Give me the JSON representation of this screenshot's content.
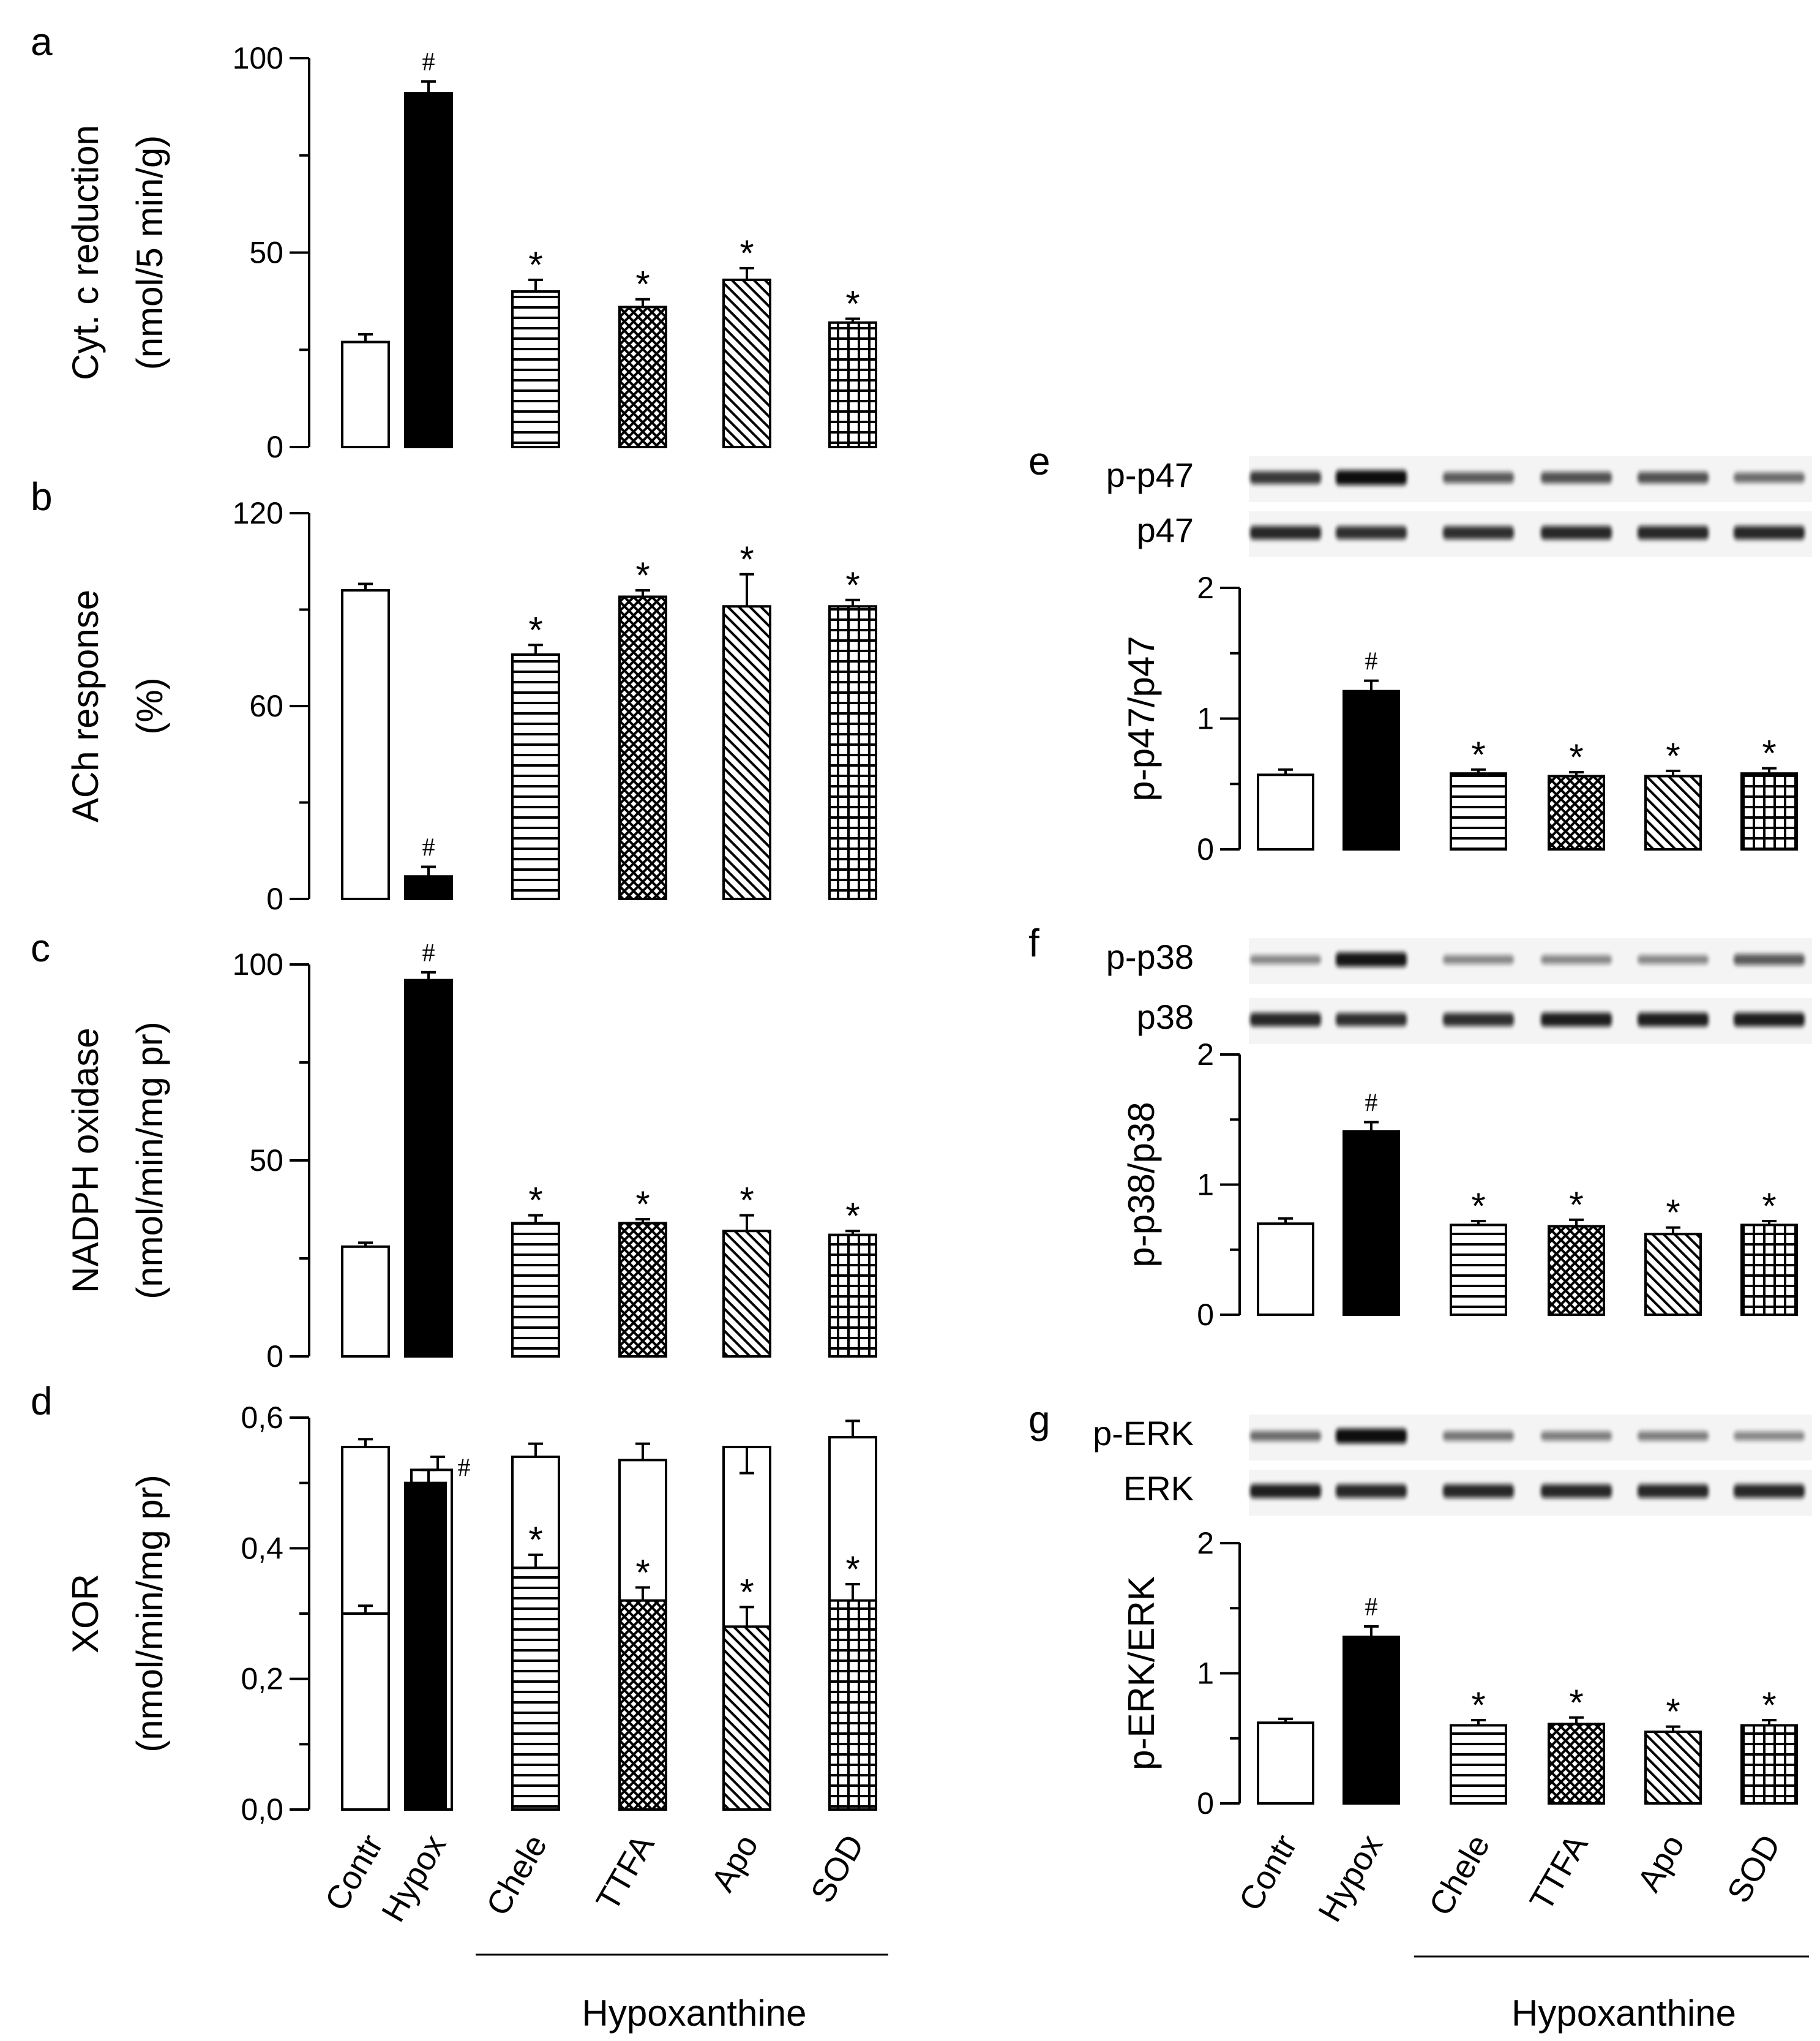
{
  "chart_data": [
    {
      "panel": "a",
      "type": "bar",
      "layout": "stacked-column-1",
      "title": "",
      "xlabel": "",
      "ylabel": [
        "Cyt. c reduction",
        "(nmol/5 min/g)"
      ],
      "ylim": [
        0,
        100
      ],
      "yticks": [
        "0",
        "50",
        "100"
      ],
      "grid": false,
      "categories": [
        "Contr",
        "Hypox",
        "Chele",
        "TTFA",
        "Apo",
        "SOD"
      ],
      "fills": [
        "white",
        "black",
        "hlines",
        "crosshatch",
        "diagonal",
        "grid"
      ],
      "values": [
        27,
        91,
        40,
        36,
        43,
        32
      ],
      "errors": [
        2,
        3,
        3,
        2,
        3,
        1
      ],
      "annotations": [
        "",
        "#",
        "*",
        "*",
        "*",
        "*"
      ]
    },
    {
      "panel": "b",
      "type": "bar",
      "layout": "stacked-column-1",
      "title": "",
      "xlabel": "",
      "ylabel": [
        "ACh response",
        "(%)"
      ],
      "ylim": [
        0,
        120
      ],
      "yticks": [
        "0",
        "60",
        "120"
      ],
      "grid": false,
      "categories": [
        "Contr",
        "Hypox",
        "Chele",
        "TTFA",
        "Apo",
        "SOD"
      ],
      "fills": [
        "white",
        "black",
        "hlines",
        "crosshatch",
        "diagonal",
        "grid"
      ],
      "values": [
        96,
        7,
        76,
        94,
        91,
        91
      ],
      "errors": [
        2,
        3,
        3,
        2,
        10,
        2
      ],
      "annotations": [
        "",
        "#",
        "*",
        "*",
        "*",
        "*"
      ]
    },
    {
      "panel": "c",
      "type": "bar",
      "layout": "stacked-column-1",
      "title": "",
      "xlabel": "",
      "ylabel": [
        "NADPH oxidase",
        "(nmol/min/mg pr)"
      ],
      "ylim": [
        0,
        100
      ],
      "yticks": [
        "0",
        "50",
        "100"
      ],
      "grid": false,
      "categories": [
        "Contr",
        "Hypox",
        "Chele",
        "TTFA",
        "Apo",
        "SOD"
      ],
      "fills": [
        "white",
        "black",
        "hlines",
        "crosshatch",
        "diagonal",
        "grid"
      ],
      "values": [
        28,
        96,
        34,
        34,
        32,
        31
      ],
      "errors": [
        1,
        2,
        2,
        1,
        4,
        1
      ],
      "annotations": [
        "",
        "#",
        "*",
        "*",
        "*",
        "*"
      ]
    },
    {
      "panel": "d",
      "type": "bar",
      "layout": "stacked-column-1",
      "title": "",
      "xlabel": "",
      "ylabel": [
        "XOR",
        "(nmol/min/mg pr)"
      ],
      "ylim": [
        0,
        0.6
      ],
      "yticks": [
        "0,0",
        "0,2",
        "0,4",
        "0,6"
      ],
      "grid": false,
      "categories": [
        "Contr",
        "Hypox",
        "Chele",
        "TTFA",
        "Apo",
        "SOD"
      ],
      "fills": [
        "white",
        "black",
        "hlines",
        "crosshatch",
        "diagonal",
        "grid"
      ],
      "series": [
        {
          "name": "total",
          "values": [
            0.555,
            0.52,
            0.54,
            0.535,
            0.555,
            0.57
          ],
          "errors": [
            0.012,
            0.02,
            0.02,
            0.025,
            0.04,
            0.025
          ]
        },
        {
          "name": "oxidase",
          "values": [
            0.3,
            0.5,
            0.37,
            0.32,
            0.28,
            0.32
          ],
          "errors": [
            0.012,
            0.02,
            0.02,
            0.02,
            0.03,
            0.025
          ]
        }
      ],
      "annotations": [
        "",
        "#",
        "*",
        "*",
        "*",
        "*"
      ]
    },
    {
      "panel": "e",
      "type": "bar",
      "layout": "stacked-column-2",
      "title": "",
      "xlabel": "",
      "ylabel": [
        "p-p47/p47"
      ],
      "blot_labels": [
        "p-p47",
        "p47"
      ],
      "blot_intensity": [
        [
          0.75,
          1.0,
          0.55,
          0.6,
          0.6,
          0.45
        ],
        [
          0.85,
          0.8,
          0.8,
          0.85,
          0.85,
          0.85
        ]
      ],
      "ylim": [
        0,
        2
      ],
      "yticks": [
        "0",
        "1",
        "2"
      ],
      "grid": false,
      "categories": [
        "Contr",
        "Hypox",
        "Chele",
        "TTFA",
        "Apo",
        "SOD"
      ],
      "fills": [
        "white",
        "black",
        "hlines",
        "crosshatch",
        "diagonal",
        "grid"
      ],
      "values": [
        0.57,
        1.21,
        0.58,
        0.56,
        0.56,
        0.58
      ],
      "errors": [
        0.04,
        0.08,
        0.03,
        0.03,
        0.04,
        0.04
      ],
      "annotations": [
        "",
        "#",
        "*",
        "*",
        "*",
        "*"
      ]
    },
    {
      "panel": "f",
      "type": "bar",
      "layout": "stacked-column-2",
      "title": "",
      "xlabel": "",
      "ylabel": [
        "p-p38/p38"
      ],
      "blot_labels": [
        "p-p38",
        "p38"
      ],
      "blot_intensity": [
        [
          0.3,
          0.95,
          0.3,
          0.3,
          0.3,
          0.55
        ],
        [
          0.85,
          0.8,
          0.8,
          0.9,
          0.9,
          0.9
        ]
      ],
      "ylim": [
        0,
        2
      ],
      "yticks": [
        "0",
        "1",
        "2"
      ],
      "grid": false,
      "categories": [
        "Contr",
        "Hypox",
        "Chele",
        "TTFA",
        "Apo",
        "SOD"
      ],
      "fills": [
        "white",
        "black",
        "hlines",
        "crosshatch",
        "diagonal",
        "grid"
      ],
      "values": [
        0.7,
        1.41,
        0.69,
        0.68,
        0.62,
        0.69
      ],
      "errors": [
        0.04,
        0.07,
        0.03,
        0.05,
        0.05,
        0.03
      ],
      "annotations": [
        "",
        "#",
        "*",
        "*",
        "*",
        "*"
      ]
    },
    {
      "panel": "g",
      "type": "bar",
      "layout": "stacked-column-2",
      "title": "",
      "xlabel": "",
      "ylabel": [
        "p-ERK/ERK"
      ],
      "blot_labels": [
        "p-ERK",
        "ERK"
      ],
      "blot_intensity": [
        [
          0.45,
          1.0,
          0.4,
          0.35,
          0.35,
          0.3
        ],
        [
          0.9,
          0.85,
          0.85,
          0.85,
          0.85,
          0.85
        ]
      ],
      "ylim": [
        0,
        2
      ],
      "yticks": [
        "0",
        "1",
        "2"
      ],
      "grid": false,
      "categories": [
        "Contr",
        "Hypox",
        "Chele",
        "TTFA",
        "Apo",
        "SOD"
      ],
      "fills": [
        "white",
        "black",
        "hlines",
        "crosshatch",
        "diagonal",
        "grid"
      ],
      "values": [
        0.62,
        1.28,
        0.6,
        0.61,
        0.55,
        0.6
      ],
      "errors": [
        0.03,
        0.08,
        0.04,
        0.05,
        0.04,
        0.04
      ],
      "annotations": [
        "",
        "#",
        "*",
        "*",
        "*",
        "*"
      ]
    }
  ],
  "x_axis": {
    "categories": [
      "Contr",
      "Hypox",
      "Chele",
      "TTFA",
      "Apo",
      "SOD"
    ],
    "group_label": "Hypoxanthine",
    "group_members": [
      "Chele",
      "TTFA",
      "Apo",
      "SOD"
    ]
  },
  "colors": {
    "ink": "#000000",
    "paper": "#ffffff",
    "blot_band": "#111111",
    "blot_background": "#f4f4f4"
  }
}
